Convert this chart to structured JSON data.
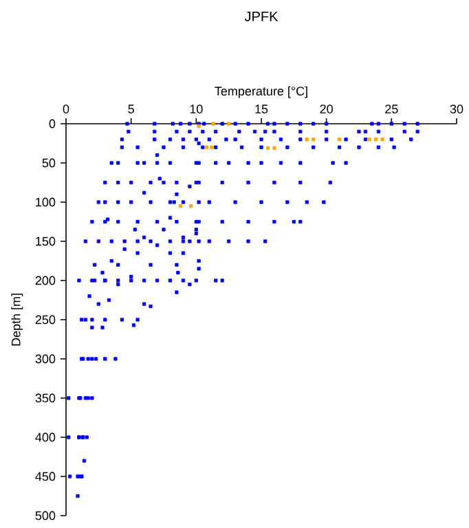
{
  "chart_data": {
    "type": "scatter",
    "title": "JPFK",
    "xlabel": "Temperature [°C]",
    "ylabel": "Depth [m]",
    "xlim": [
      0,
      30
    ],
    "ylim": [
      500,
      0
    ],
    "xticks": [
      0,
      5,
      10,
      15,
      20,
      25,
      30
    ],
    "yticks": [
      0,
      50,
      100,
      150,
      200,
      250,
      300,
      350,
      400,
      450,
      500
    ],
    "marker": "square",
    "grid": false,
    "series": [
      {
        "color": "#0000ff",
        "x": [
          4.7,
          6.8,
          8.2,
          8.8,
          9.5,
          10.6,
          12,
          13,
          14,
          15.5,
          16,
          17,
          18,
          19,
          20,
          23.5,
          24,
          25,
          26,
          27,
          4.8,
          6.8,
          8.5,
          9.5,
          10.5,
          11.5,
          13.3,
          14.5,
          15.3,
          16,
          18,
          20,
          22.5,
          23,
          24,
          26,
          27,
          4.3,
          6.8,
          8,
          9,
          10,
          11,
          12.3,
          13,
          15,
          16.5,
          18,
          20,
          21.5,
          23,
          25,
          26.5,
          4.3,
          5.5,
          7.5,
          9,
          10.5,
          11.5,
          13.5,
          15,
          17,
          19,
          21,
          22.5,
          24,
          25.2,
          3.5,
          4,
          5.5,
          6,
          7,
          8,
          10,
          11.5,
          12.5,
          14,
          15,
          16.5,
          18,
          20.5,
          21.5,
          3,
          4,
          5,
          6.5,
          7.5,
          8.5,
          10,
          12,
          14,
          16,
          18,
          20.3,
          2.5,
          3,
          4,
          5,
          6.5,
          8,
          9,
          11,
          13,
          15,
          17,
          18.5,
          19.8,
          2,
          3,
          4,
          5.5,
          7,
          8.5,
          10,
          12,
          14,
          16,
          17.5,
          18,
          1.5,
          2.5,
          3.5,
          4.5,
          5.5,
          6.5,
          8,
          9.5,
          11,
          12.5,
          14,
          15.3,
          1,
          2,
          3,
          4,
          5,
          6,
          7,
          8,
          9,
          10,
          11.5,
          12,
          1.2,
          2,
          3,
          4.3,
          1.2,
          2,
          3,
          3.8,
          0.2,
          1,
          1.7,
          0.2,
          1,
          1.3,
          0.3,
          1,
          1.2,
          10.2,
          10.2,
          10.2,
          10.2,
          10.2,
          10.2,
          10.2,
          10.2,
          10.2,
          9.5,
          8.5,
          8.3,
          8,
          7.5,
          6,
          4.5,
          3.5,
          2.8,
          2.2,
          1.8,
          1.5,
          1.3,
          1.1,
          1,
          0.9,
          0.9,
          10,
          9,
          7,
          5.5,
          4,
          3,
          2.5,
          2,
          1.7,
          1.5,
          1.3,
          1.2,
          10,
          9,
          8,
          6.5,
          5,
          4,
          3.3,
          2.8,
          2.3,
          2,
          1.6,
          1.4,
          7,
          7.2,
          6,
          5.3,
          3.2,
          2.2,
          9,
          8.5,
          8.6,
          9.5,
          8.5,
          6,
          6.5,
          5.5,
          5.2
        ],
        "values": [
          0,
          0,
          0,
          0,
          0,
          0,
          0,
          0,
          0,
          0,
          0,
          0,
          0,
          0,
          0,
          0,
          0,
          0,
          0,
          0,
          10,
          10,
          10,
          10,
          10,
          10,
          10,
          10,
          10,
          10,
          10,
          10,
          10,
          10,
          10,
          10,
          10,
          20,
          20,
          20,
          20,
          20,
          20,
          20,
          20,
          20,
          20,
          20,
          20,
          20,
          20,
          20,
          20,
          30,
          30,
          30,
          30,
          30,
          30,
          30,
          30,
          30,
          30,
          30,
          30,
          30,
          30,
          50,
          50,
          50,
          50,
          50,
          50,
          50,
          50,
          50,
          50,
          50,
          50,
          50,
          50,
          50,
          75,
          75,
          75,
          75,
          75,
          75,
          75,
          75,
          75,
          75,
          75,
          75,
          100,
          100,
          100,
          100,
          100,
          100,
          100,
          100,
          100,
          100,
          100,
          100,
          100,
          125,
          125,
          125,
          125,
          125,
          125,
          125,
          125,
          125,
          125,
          125,
          125,
          150,
          150,
          150,
          150,
          150,
          150,
          150,
          150,
          150,
          150,
          150,
          150,
          200,
          200,
          200,
          200,
          200,
          200,
          200,
          200,
          200,
          200,
          200,
          200,
          250,
          250,
          250,
          250,
          300,
          300,
          300,
          300,
          350,
          350,
          350,
          400,
          400,
          400,
          450,
          450,
          450,
          0,
          25,
          50,
          75,
          100,
          125,
          150,
          175,
          185,
          80,
          90,
          100,
          120,
          135,
          145,
          160,
          175,
          190,
          200,
          220,
          250,
          300,
          350,
          400,
          450,
          475,
          135,
          145,
          155,
          165,
          180,
          200,
          230,
          260,
          300,
          350,
          400,
          450,
          140,
          150,
          165,
          180,
          195,
          205,
          225,
          260,
          300,
          350,
          400,
          430,
          40,
          70,
          88,
          135,
          122,
          180,
          165,
          180,
          190,
          205,
          215,
          230,
          233,
          250,
          257
        ]
      },
      {
        "color": "#ffa500",
        "x": [
          10.2,
          11.3,
          12.5,
          18.5,
          19,
          21,
          23.3,
          23.8,
          24.3,
          10.8,
          11.2,
          15.5,
          16,
          8.8,
          9.6
        ],
        "values": [
          3,
          0,
          0,
          20,
          20,
          20,
          20,
          20,
          20,
          30,
          30,
          31,
          31,
          105,
          105
        ]
      }
    ]
  }
}
